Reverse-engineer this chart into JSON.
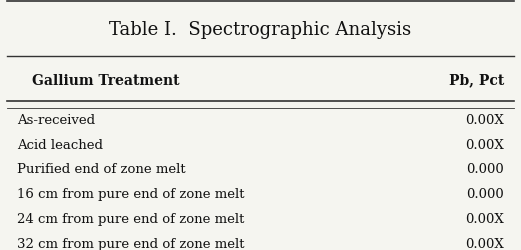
{
  "title": "Table I.  Spectrographic Analysis",
  "col_header_left": "Gallium Treatment",
  "col_header_right": "Pb, Pct",
  "rows": [
    [
      "As-received",
      "0.00X"
    ],
    [
      "Acid leached",
      "0.00X"
    ],
    [
      "Purified end of zone melt",
      "0.000"
    ],
    [
      "16 cm from pure end of zone melt",
      "0.000"
    ],
    [
      "24 cm from pure end of zone melt",
      "0.00X"
    ],
    [
      "32 cm from pure end of zone melt",
      "0.00X"
    ]
  ],
  "bg_color": "#f5f5f0",
  "text_color": "#111111",
  "title_fontsize": 13,
  "header_fontsize": 10,
  "row_fontsize": 9.5,
  "fig_width": 5.21,
  "fig_height": 2.51
}
